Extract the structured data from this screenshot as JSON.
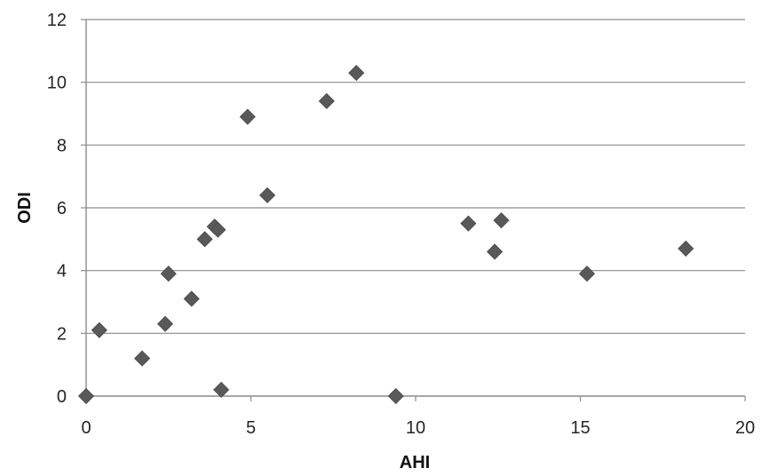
{
  "chart_data": {
    "type": "scatter",
    "title": "",
    "xlabel": "AHI",
    "ylabel": "ODI",
    "xlim": [
      0,
      20
    ],
    "ylim": [
      0,
      12
    ],
    "xticks": [
      0,
      5,
      10,
      15,
      20
    ],
    "yticks": [
      0,
      2,
      4,
      6,
      8,
      10,
      12
    ],
    "grid": "horizontal",
    "legend": "none",
    "marker": "diamond",
    "marker_color": "#595959",
    "gridline_color": "#8c8c8c",
    "axis_color": "#8c8c8c",
    "points": [
      {
        "x": 0.0,
        "y": 0.0
      },
      {
        "x": 0.4,
        "y": 2.1
      },
      {
        "x": 1.7,
        "y": 1.2
      },
      {
        "x": 2.4,
        "y": 2.3
      },
      {
        "x": 2.5,
        "y": 3.9
      },
      {
        "x": 3.2,
        "y": 3.1
      },
      {
        "x": 3.6,
        "y": 5.0
      },
      {
        "x": 3.9,
        "y": 5.4
      },
      {
        "x": 4.0,
        "y": 5.3
      },
      {
        "x": 4.1,
        "y": 0.2
      },
      {
        "x": 4.9,
        "y": 8.9
      },
      {
        "x": 5.5,
        "y": 6.4
      },
      {
        "x": 7.3,
        "y": 9.4
      },
      {
        "x": 8.2,
        "y": 10.3
      },
      {
        "x": 9.4,
        "y": 0.0
      },
      {
        "x": 11.6,
        "y": 5.5
      },
      {
        "x": 12.4,
        "y": 4.6
      },
      {
        "x": 12.6,
        "y": 5.6
      },
      {
        "x": 15.2,
        "y": 3.9
      },
      {
        "x": 18.2,
        "y": 4.7
      }
    ]
  }
}
